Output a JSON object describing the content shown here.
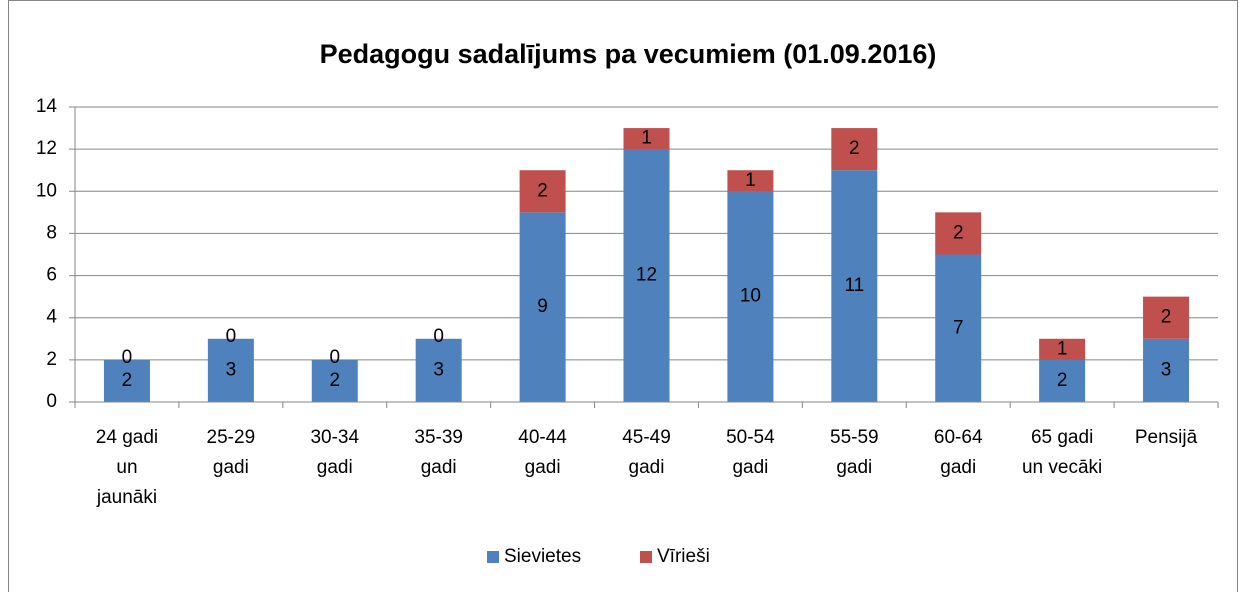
{
  "chart_data": {
    "type": "stacked_bar",
    "title": "Pedagogu  sadalījums pa vecumiem (01.09.2016)",
    "categories": [
      "24 gadi un jaunāki",
      "25-29 gadi",
      "30-34 gadi",
      "35-39 gadi",
      "40-44 gadi",
      "45-49 gadi",
      "50-54 gadi",
      "55-59 gadi",
      "60-64 gadi",
      "65 gadi un vecāki",
      "Pensijā"
    ],
    "series": [
      {
        "name": "Sievietes",
        "color": "#4f81bd",
        "values": [
          2,
          3,
          2,
          3,
          9,
          12,
          10,
          11,
          7,
          2,
          3
        ]
      },
      {
        "name": "Vīrieši",
        "color": "#c0504d",
        "values": [
          0,
          0,
          0,
          0,
          2,
          1,
          1,
          2,
          2,
          1,
          2
        ]
      }
    ],
    "ylim": [
      0,
      14
    ],
    "yticks": [
      0,
      2,
      4,
      6,
      8,
      10,
      12,
      14
    ],
    "grid": true,
    "legend": "bottom"
  }
}
